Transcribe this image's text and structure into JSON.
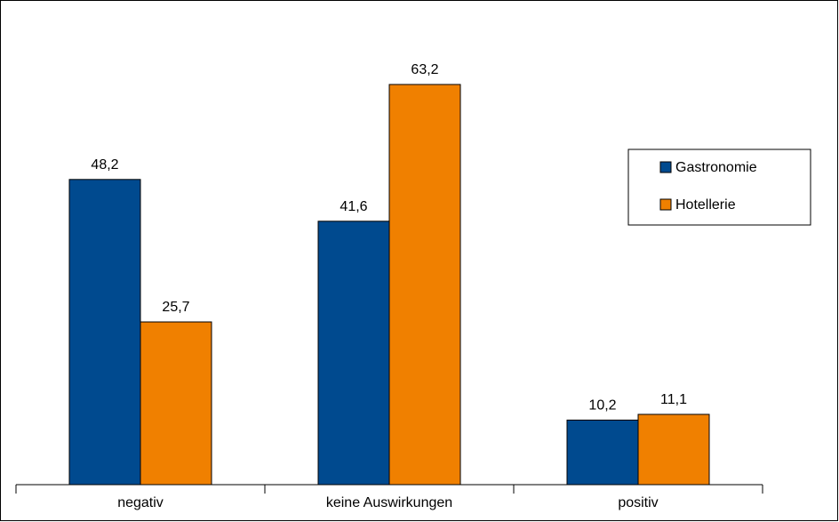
{
  "chart_data": {
    "type": "bar",
    "categories": [
      "negativ",
      "keine Auswirkungen",
      "positiv"
    ],
    "series": [
      {
        "name": "Gastronomie",
        "color": "#004a8f",
        "values": [
          48.2,
          41.6,
          10.2
        ],
        "value_labels": [
          "48,2",
          "41,6",
          "10,2"
        ]
      },
      {
        "name": "Hotellerie",
        "color": "#f08000",
        "values": [
          25.7,
          63.2,
          11.1
        ],
        "value_labels": [
          "25,7",
          "63,2",
          "11,1"
        ]
      }
    ],
    "legend": "right"
  }
}
